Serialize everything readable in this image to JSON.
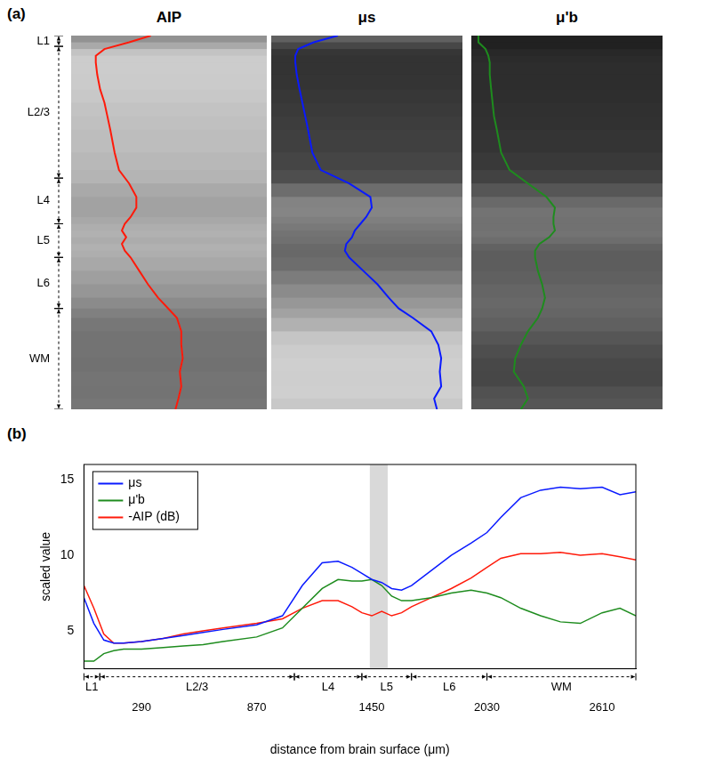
{
  "panel_a": {
    "label": "(a)",
    "panels": [
      {
        "title": "AIP",
        "series": "-AIP (dB)"
      },
      {
        "title": "μs",
        "series": "μs"
      },
      {
        "title": "μ'b",
        "series": "μ'b"
      }
    ]
  },
  "chart_data": {
    "type": "line",
    "label": "(b)",
    "xlabel": "distance from brain surface (μm)",
    "ylabel": "scaled value",
    "x": [
      0,
      50,
      100,
      150,
      200,
      290,
      400,
      500,
      600,
      700,
      870,
      1000,
      1100,
      1200,
      1280,
      1350,
      1400,
      1450,
      1500,
      1550,
      1600,
      1650,
      1750,
      1850,
      1950,
      2030,
      2100,
      2200,
      2300,
      2400,
      2500,
      2610,
      2700,
      2780
    ],
    "series": [
      {
        "name": "μs",
        "color": "#0a1aff",
        "values": [
          7.2,
          5.5,
          4.4,
          4.2,
          4.2,
          4.3,
          4.5,
          4.7,
          4.9,
          5.1,
          5.4,
          6.0,
          8.0,
          9.5,
          9.6,
          9.2,
          8.8,
          8.4,
          8.2,
          7.8,
          7.7,
          8.0,
          9.0,
          10.0,
          10.8,
          11.5,
          12.5,
          13.8,
          14.3,
          14.5,
          14.4,
          14.5,
          14.0,
          14.2
        ]
      },
      {
        "name": "μ'b",
        "color": "#1e8c1e",
        "values": [
          3.0,
          3.0,
          3.5,
          3.7,
          3.8,
          3.8,
          3.9,
          4.0,
          4.1,
          4.3,
          4.6,
          5.2,
          6.5,
          7.8,
          8.4,
          8.3,
          8.3,
          8.4,
          8.0,
          7.3,
          7.0,
          7.0,
          7.2,
          7.5,
          7.7,
          7.5,
          7.2,
          6.5,
          6.0,
          5.6,
          5.5,
          6.2,
          6.5,
          6.0
        ]
      },
      {
        "name": "-AIP (dB)",
        "color": "#ff1a0a",
        "values": [
          8.0,
          6.5,
          4.8,
          4.2,
          4.2,
          4.3,
          4.5,
          4.8,
          5.0,
          5.2,
          5.5,
          5.8,
          6.5,
          7.0,
          7.0,
          6.6,
          6.2,
          6.0,
          6.3,
          6.0,
          6.2,
          6.6,
          7.2,
          7.8,
          8.5,
          9.2,
          9.8,
          10.1,
          10.1,
          10.2,
          10.0,
          10.1,
          9.9,
          9.7
        ]
      }
    ],
    "xlim": [
      0,
      2780
    ],
    "xticks": [
      290,
      870,
      1450,
      2030,
      2610
    ],
    "ylim": [
      2.5,
      16
    ],
    "yticks": [
      5,
      10,
      15
    ],
    "grid": false,
    "legend": "upper left",
    "shaded_range": [
      1440,
      1530
    ],
    "layers": [
      {
        "label": "L1",
        "range": [
          0,
          80
        ]
      },
      {
        "label": "L2/3",
        "range": [
          80,
          1060
        ]
      },
      {
        "label": "L4",
        "range": [
          1060,
          1400
        ]
      },
      {
        "label": "L5",
        "range": [
          1400,
          1650
        ]
      },
      {
        "label": "L6",
        "range": [
          1650,
          2030
        ]
      },
      {
        "label": "WM",
        "range": [
          2030,
          2780
        ]
      }
    ]
  }
}
